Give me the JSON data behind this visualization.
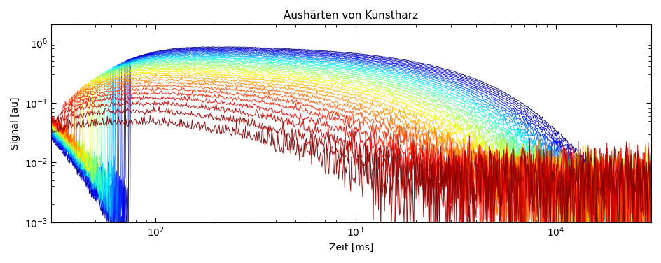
{
  "title": "Aushärten von Kunstharz",
  "xlabel": "Zeit [ms]",
  "ylabel": "Signal [au]",
  "xlim": [
    30,
    30000
  ],
  "ylim": [
    0.001,
    2.0
  ],
  "n_curves": 35,
  "background_color": "#ffffff",
  "title_fontsize": 11,
  "label_fontsize": 10
}
